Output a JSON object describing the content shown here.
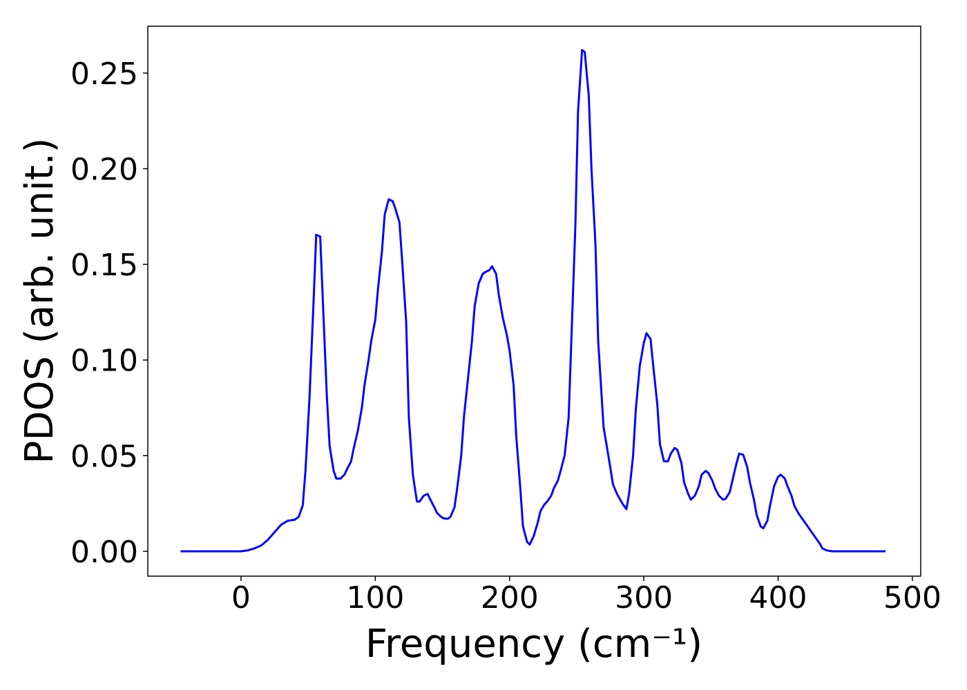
{
  "chart_data": {
    "type": "line",
    "xlabel": "Frequency (cm⁻¹)",
    "ylabel": "PDOS (arb. unit.)",
    "xlim": [
      -69.4,
      506.2
    ],
    "ylim": [
      -0.013,
      0.2745
    ],
    "xticks": [
      0,
      100,
      200,
      300,
      400,
      500
    ],
    "yticks": [
      {
        "value": 0,
        "label": "0.00"
      },
      {
        "value": 0.05,
        "label": "0.05"
      },
      {
        "value": 0.1,
        "label": "0.10"
      },
      {
        "value": 0.15,
        "label": "0.15"
      },
      {
        "value": 0.2,
        "label": "0.20"
      },
      {
        "value": 0.25,
        "label": "0.25"
      }
    ],
    "grid": false,
    "series": [
      {
        "color": "#0000ff",
        "x": [
          -45,
          0,
          5,
          10,
          15,
          20,
          25,
          30,
          35,
          40,
          43,
          46,
          48,
          51,
          54,
          56,
          59,
          61,
          64,
          66,
          69,
          71,
          74,
          77,
          79,
          82,
          84,
          87,
          90,
          92,
          95,
          97,
          100,
          102,
          105,
          107,
          110,
          113,
          115,
          118,
          120,
          123,
          125,
          128,
          131,
          133,
          136,
          139,
          141,
          144,
          146,
          149,
          151,
          154,
          156,
          159,
          161,
          164,
          166,
          169,
          172,
          174,
          177,
          180,
          182,
          185,
          187,
          190,
          192,
          195,
          198,
          200,
          203,
          205,
          208,
          210,
          213,
          215,
          218,
          221,
          223,
          226,
          228,
          231,
          233,
          236,
          238,
          241,
          244,
          246,
          249,
          251,
          254,
          256,
          259,
          261,
          264,
          266,
          270,
          275,
          277,
          280,
          284,
          287,
          289,
          292,
          294,
          297,
          300,
          302,
          305,
          307,
          310,
          312,
          315,
          318,
          320,
          323,
          325,
          328,
          330,
          333,
          335,
          338,
          341,
          343,
          346,
          348,
          351,
          353,
          356,
          359,
          361,
          364,
          366,
          369,
          371,
          374,
          377,
          379,
          382,
          384,
          387,
          389,
          392,
          394,
          397,
          400,
          402,
          405,
          407,
          410,
          412,
          415,
          418,
          420,
          423,
          425,
          428,
          431,
          433,
          436,
          440,
          480
        ],
        "values": [
          0,
          0,
          0.0005,
          0.0015,
          0.003,
          0.006,
          0.01,
          0.014,
          0.016,
          0.0165,
          0.018,
          0.024,
          0.042,
          0.08,
          0.13,
          0.1655,
          0.1645,
          0.13,
          0.08,
          0.055,
          0.042,
          0.038,
          0.038,
          0.04,
          0.043,
          0.047,
          0.054,
          0.063,
          0.075,
          0.087,
          0.1,
          0.11,
          0.121,
          0.137,
          0.157,
          0.176,
          0.184,
          0.183,
          0.179,
          0.172,
          0.152,
          0.12,
          0.07,
          0.04,
          0.026,
          0.026,
          0.029,
          0.03,
          0.027,
          0.023,
          0.02,
          0.018,
          0.0172,
          0.017,
          0.018,
          0.023,
          0.033,
          0.05,
          0.07,
          0.09,
          0.11,
          0.128,
          0.14,
          0.145,
          0.146,
          0.147,
          0.149,
          0.145,
          0.134,
          0.122,
          0.113,
          0.105,
          0.087,
          0.06,
          0.033,
          0.013,
          0.005,
          0.0035,
          0.008,
          0.015,
          0.021,
          0.0245,
          0.026,
          0.029,
          0.033,
          0.037,
          0.042,
          0.05,
          0.07,
          0.11,
          0.17,
          0.23,
          0.262,
          0.261,
          0.238,
          0.2,
          0.16,
          0.11,
          0.065,
          0.044,
          0.035,
          0.03,
          0.025,
          0.022,
          0.03,
          0.05,
          0.074,
          0.097,
          0.109,
          0.114,
          0.111,
          0.097,
          0.077,
          0.056,
          0.047,
          0.047,
          0.051,
          0.054,
          0.053,
          0.046,
          0.036,
          0.03,
          0.027,
          0.029,
          0.034,
          0.04,
          0.042,
          0.041,
          0.037,
          0.033,
          0.029,
          0.027,
          0.0275,
          0.031,
          0.037,
          0.046,
          0.051,
          0.0505,
          0.044,
          0.036,
          0.027,
          0.019,
          0.013,
          0.012,
          0.016,
          0.024,
          0.034,
          0.039,
          0.04,
          0.038,
          0.034,
          0.029,
          0.024,
          0.02,
          0.017,
          0.015,
          0.012,
          0.01,
          0.007,
          0.004,
          0.0015,
          0.0005,
          0,
          0
        ]
      }
    ]
  }
}
